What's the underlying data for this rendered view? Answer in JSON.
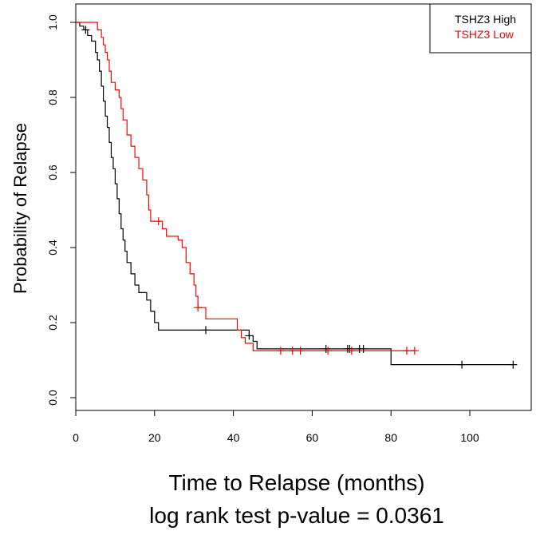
{
  "chart_data": {
    "type": "line",
    "chart_kind": "kaplan-meier step curve",
    "xlabel": "Time to Relapse (months)",
    "ylabel": "Probability of Relapse",
    "subtitle": "log rank test p-value = 0.0361",
    "xlim": [
      0,
      115
    ],
    "ylim": [
      0,
      1.02
    ],
    "x_ticks": [
      "0",
      "20",
      "40",
      "60",
      "80",
      "100"
    ],
    "y_ticks": [
      "0.0",
      "0.2",
      "0.4",
      "0.6",
      "0.8",
      "1.0"
    ],
    "grid": false,
    "legend_position": "top-right",
    "series": [
      {
        "name": "TSHZ3 High",
        "color": "#000000",
        "steps": [
          [
            0,
            1.0
          ],
          [
            1,
            0.99
          ],
          [
            2,
            0.98
          ],
          [
            3,
            0.965
          ],
          [
            4,
            0.95
          ],
          [
            5,
            0.92
          ],
          [
            5.5,
            0.9
          ],
          [
            6,
            0.87
          ],
          [
            6.5,
            0.83
          ],
          [
            7,
            0.79
          ],
          [
            7.5,
            0.75
          ],
          [
            8,
            0.72
          ],
          [
            8.5,
            0.68
          ],
          [
            9,
            0.64
          ],
          [
            9.5,
            0.61
          ],
          [
            10,
            0.57
          ],
          [
            10.5,
            0.53
          ],
          [
            11,
            0.49
          ],
          [
            11.5,
            0.45
          ],
          [
            12,
            0.42
          ],
          [
            12.5,
            0.39
          ],
          [
            13,
            0.36
          ],
          [
            14,
            0.33
          ],
          [
            15,
            0.3
          ],
          [
            16,
            0.28
          ],
          [
            18,
            0.26
          ],
          [
            19,
            0.23
          ],
          [
            20,
            0.2
          ],
          [
            21,
            0.18
          ],
          [
            44,
            0.165
          ],
          [
            45,
            0.15
          ],
          [
            46,
            0.13
          ],
          [
            80,
            0.088
          ],
          [
            111,
            0.088
          ]
        ],
        "censored": [
          2.5,
          33,
          44,
          63.5,
          69,
          69.5,
          72,
          73,
          98,
          111
        ]
      },
      {
        "name": "TSHZ3 Low",
        "color": "#ff0000",
        "steps": [
          [
            0,
            1.0
          ],
          [
            5.5,
            0.98
          ],
          [
            6.5,
            0.96
          ],
          [
            7,
            0.94
          ],
          [
            7.5,
            0.92
          ],
          [
            8,
            0.9
          ],
          [
            8.5,
            0.87
          ],
          [
            9,
            0.84
          ],
          [
            10,
            0.82
          ],
          [
            11,
            0.8
          ],
          [
            11.5,
            0.77
          ],
          [
            12,
            0.74
          ],
          [
            13,
            0.7
          ],
          [
            14,
            0.67
          ],
          [
            15,
            0.64
          ],
          [
            16,
            0.61
          ],
          [
            17,
            0.58
          ],
          [
            18,
            0.54
          ],
          [
            18.5,
            0.5
          ],
          [
            19,
            0.47
          ],
          [
            22,
            0.45
          ],
          [
            23,
            0.43
          ],
          [
            26,
            0.42
          ],
          [
            27,
            0.4
          ],
          [
            28,
            0.36
          ],
          [
            29,
            0.33
          ],
          [
            30,
            0.3
          ],
          [
            30.5,
            0.27
          ],
          [
            31,
            0.24
          ],
          [
            33,
            0.21
          ],
          [
            41,
            0.18
          ],
          [
            42,
            0.16
          ],
          [
            43,
            0.145
          ],
          [
            45,
            0.125
          ],
          [
            86,
            0.125
          ]
        ],
        "censored": [
          21,
          31,
          52,
          55,
          57,
          64,
          70,
          84,
          86
        ]
      }
    ]
  }
}
